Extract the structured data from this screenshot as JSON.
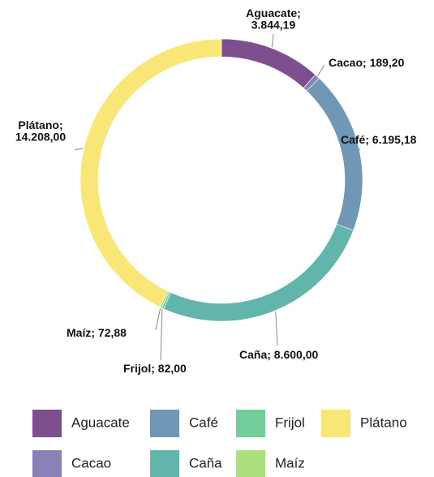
{
  "chart_data": {
    "type": "donut",
    "categories": [
      "Aguacate",
      "Cacao",
      "Café",
      "Caña",
      "Frijol",
      "Maíz",
      "Plátano"
    ],
    "values": [
      3844.19,
      189.2,
      6195.18,
      8600.0,
      82.0,
      72.88,
      14208.0
    ],
    "value_labels": [
      "3.844,19",
      "189,20",
      "6.195,18",
      "8.600,00",
      "82,00",
      "72,88",
      "14.208,00"
    ],
    "label_separator": "; ",
    "colors": [
      "#7e4f8e",
      "#8c80b9",
      "#7097b6",
      "#62b5aa",
      "#72cf9c",
      "#abe07c",
      "#f8e776"
    ],
    "legend": "bottom"
  }
}
